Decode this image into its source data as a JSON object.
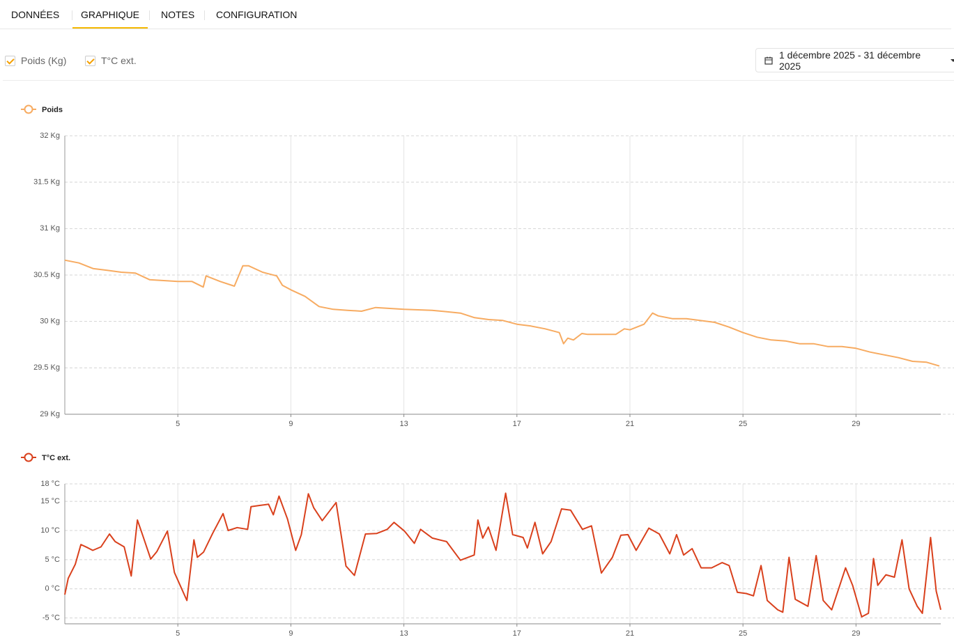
{
  "tabs": [
    "DONNÉES",
    "GRAPHIQUE",
    "NOTES",
    "CONFIGURATION"
  ],
  "active_tab": 1,
  "filters": [
    "Poids (Kg)",
    "T°C ext."
  ],
  "date_range": "1 décembre 2025 - 31 décembre 2025",
  "chart_data": [
    {
      "type": "line",
      "legend": "top-left",
      "grid": true,
      "xlim": [
        1,
        32
      ],
      "xticks": [
        5,
        9,
        13,
        17,
        21,
        25,
        29
      ],
      "ylim": [
        29,
        32
      ],
      "yticks": [
        {
          "value": 29,
          "label": "29 Kg"
        },
        {
          "value": 29.5,
          "label": "29.5 Kg"
        },
        {
          "value": 30,
          "label": "30 Kg"
        },
        {
          "value": 30.5,
          "label": "30.5 Kg"
        },
        {
          "value": 31,
          "label": "31 Kg"
        },
        {
          "value": 31.5,
          "label": "31.5 Kg"
        },
        {
          "value": 32,
          "label": "32 Kg"
        }
      ],
      "x": [
        1,
        1.5,
        2,
        2.5,
        3,
        3.5,
        4,
        4.5,
        5,
        5.5,
        5.9,
        6,
        6.5,
        7,
        7.3,
        7.5,
        8,
        8.5,
        8.7,
        9,
        9.5,
        10,
        10.5,
        11,
        11.5,
        12,
        12.5,
        13,
        14,
        15,
        15.5,
        16,
        16.5,
        17,
        17.5,
        18,
        18.5,
        18.65,
        18.8,
        19,
        19.3,
        19.5,
        20,
        20.5,
        20.8,
        21,
        21.5,
        21.8,
        22,
        22.5,
        23,
        24,
        24.5,
        25,
        25.5,
        26,
        26.5,
        27,
        27.5,
        28,
        28.5,
        29,
        29.5,
        30,
        30.5,
        31,
        31.5,
        31.95
      ],
      "series": [
        {
          "name": "Poids",
          "color": "#f7ab61",
          "values": [
            30.66,
            30.63,
            30.57,
            30.55,
            30.53,
            30.52,
            30.45,
            30.44,
            30.43,
            30.43,
            30.37,
            30.49,
            30.43,
            30.38,
            30.6,
            30.6,
            30.53,
            30.49,
            30.39,
            30.34,
            30.27,
            30.16,
            30.13,
            30.12,
            30.11,
            30.15,
            30.14,
            30.13,
            30.12,
            30.09,
            30.04,
            30.02,
            30.01,
            29.97,
            29.95,
            29.92,
            29.88,
            29.76,
            29.82,
            29.8,
            29.87,
            29.86,
            29.86,
            29.86,
            29.92,
            29.91,
            29.97,
            30.09,
            30.06,
            30.03,
            30.03,
            29.99,
            29.94,
            29.88,
            29.83,
            29.8,
            29.79,
            29.76,
            29.76,
            29.73,
            29.73,
            29.71,
            29.67,
            29.64,
            29.61,
            29.57,
            29.56,
            29.52
          ]
        }
      ]
    },
    {
      "type": "line",
      "legend": "top-left",
      "grid": true,
      "xlim": [
        1,
        32
      ],
      "xticks": [
        5,
        9,
        13,
        17,
        21,
        25,
        29
      ],
      "ylim": [
        -6,
        18
      ],
      "yticks": [
        {
          "value": -5,
          "label": "-5 °C"
        },
        {
          "value": 0,
          "label": "0 °C"
        },
        {
          "value": 5,
          "label": "5 °C"
        },
        {
          "value": 10,
          "label": "10 °C"
        },
        {
          "value": 15,
          "label": "15 °C"
        },
        {
          "value": 18,
          "label": "18 °C"
        }
      ],
      "x": [
        1,
        1.12,
        1.37,
        1.57,
        1.79,
        1.99,
        2.28,
        2.58,
        2.78,
        3.1,
        3.35,
        3.57,
        3.77,
        4.04,
        4.26,
        4.63,
        4.88,
        5.32,
        5.57,
        5.69,
        5.91,
        6.23,
        6.6,
        6.78,
        7.1,
        7.47,
        7.59,
        7.89,
        8.21,
        8.38,
        8.58,
        8.88,
        9.17,
        9.37,
        9.62,
        9.81,
        10.11,
        10.6,
        10.95,
        11.25,
        11.64,
        12.04,
        12.41,
        12.65,
        13.02,
        13.37,
        13.59,
        14.01,
        14.51,
        15,
        15.49,
        15.62,
        15.79,
        15.99,
        16.26,
        16.6,
        16.85,
        17.22,
        17.37,
        17.64,
        17.91,
        18.21,
        18.58,
        18.9,
        19.32,
        19.64,
        19.99,
        20.38,
        20.68,
        20.93,
        21.22,
        21.67,
        22.04,
        22.41,
        22.65,
        22.9,
        23.2,
        23.52,
        23.89,
        24.26,
        24.51,
        24.8,
        25.12,
        25.37,
        25.64,
        25.86,
        26.23,
        26.41,
        26.63,
        26.85,
        27.3,
        27.59,
        27.84,
        28.14,
        28.63,
        28.88,
        29.2,
        29.44,
        29.62,
        29.77,
        30.06,
        30.36,
        30.63,
        30.88,
        31.17,
        31.35,
        31.64,
        31.84,
        32
      ],
      "series": [
        {
          "name": "T°C ext.",
          "color": "#d9401c",
          "values": [
            -1,
            1.8,
            4.2,
            7.6,
            7.1,
            6.6,
            7.2,
            9.4,
            8.1,
            7.2,
            2.2,
            11.8,
            9,
            5.1,
            6.4,
            9.9,
            2.8,
            -2,
            8.4,
            5.4,
            6.3,
            9.5,
            12.9,
            10,
            10.5,
            10.2,
            14.1,
            14.3,
            14.5,
            12.7,
            15.9,
            12,
            6.6,
            9.3,
            16.3,
            13.9,
            11.7,
            14.8,
            3.9,
            2.3,
            9.4,
            9.5,
            10.2,
            11.4,
            9.9,
            7.8,
            10.2,
            8.7,
            8.1,
            4.9,
            5.8,
            11.8,
            8.7,
            10.6,
            6.6,
            16.4,
            9.3,
            8.8,
            7,
            11.4,
            6,
            8.1,
            13.7,
            13.5,
            10.2,
            10.8,
            2.7,
            5.4,
            9.2,
            9.3,
            6.6,
            10.4,
            9.4,
            6,
            9.3,
            5.8,
            6.9,
            3.6,
            3.6,
            4.5,
            4,
            -0.6,
            -0.8,
            -1.2,
            4,
            -2,
            -3.6,
            -4,
            5.4,
            -1.8,
            -3,
            5.7,
            -2,
            -3.6,
            3.6,
            0.6,
            -4.8,
            -4.2,
            5.2,
            0.6,
            2.4,
            2,
            8.4,
            0,
            -3,
            -4.2,
            8.8,
            -0.4,
            -3.6
          ]
        }
      ]
    }
  ]
}
